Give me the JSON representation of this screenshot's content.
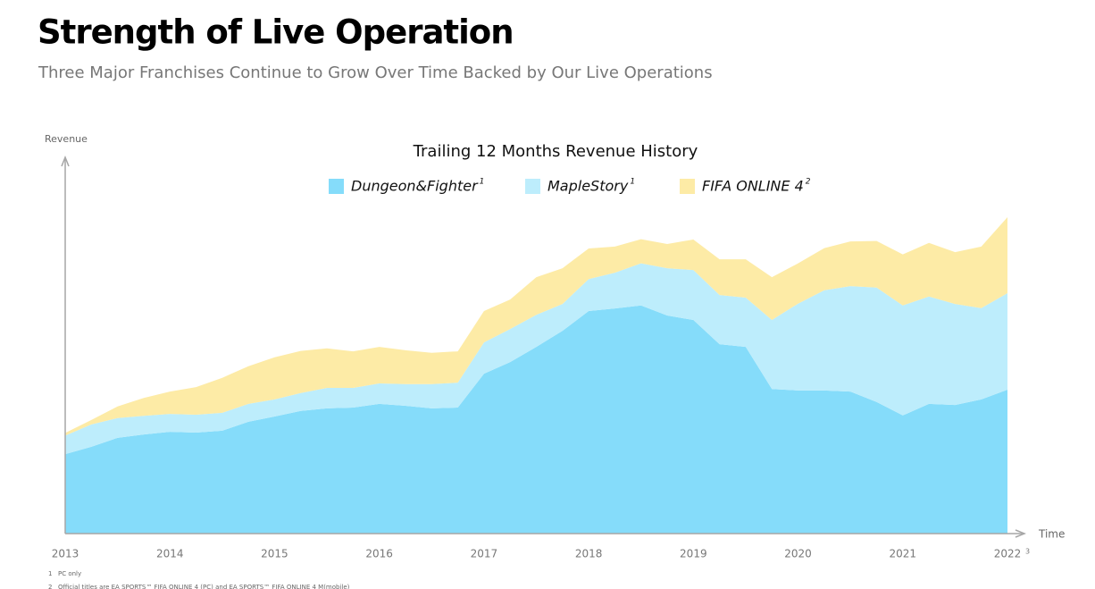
{
  "chart_data": {
    "type": "stacked_area",
    "title": "Strength of Live Operation",
    "subtitle": "Three Major Franchises Continue to Grow Over Time Backed by Our Live Operations",
    "chart_title": "Trailing 12 Months Revenue History",
    "y_label": "Revenue",
    "x_label": "Time",
    "x": [
      2013,
      2013.25,
      2013.5,
      2013.75,
      2014,
      2014.25,
      2014.5,
      2014.75,
      2015,
      2015.25,
      2015.5,
      2015.75,
      2016,
      2016.25,
      2016.5,
      2016.75,
      2017,
      2017.25,
      2017.5,
      2017.75,
      2018,
      2018.25,
      2018.5,
      2018.75,
      2019,
      2019.25,
      2019.5,
      2019.75,
      2020,
      2020.25,
      2020.5,
      2020.75,
      2021,
      2021.25,
      2021.5,
      2021.75,
      2022
    ],
    "series": [
      {
        "name": "Dungeon&Fighter",
        "name_note": "1",
        "color": "#85dcfa",
        "values": [
          21.3,
          23.3,
          25.7,
          26.6,
          27.3,
          27.1,
          27.6,
          30.0,
          31.4,
          32.9,
          33.6,
          33.8,
          34.8,
          34.3,
          33.6,
          33.8,
          42.9,
          46.0,
          50.1,
          54.4,
          59.7,
          60.4,
          61.2,
          58.5,
          57.3,
          50.8,
          50.1,
          38.8,
          38.4,
          38.4,
          38.1,
          35.3,
          31.7,
          34.8,
          34.5,
          36.0,
          38.6
        ]
      },
      {
        "name": "MapleStory",
        "name_note": "1",
        "color": "#bdedfc",
        "values": [
          5.0,
          6.0,
          5.3,
          5.0,
          4.8,
          4.8,
          4.8,
          4.8,
          4.6,
          4.8,
          5.5,
          5.3,
          5.5,
          5.8,
          6.5,
          6.7,
          8.4,
          8.9,
          8.6,
          7.2,
          8.6,
          9.6,
          11.3,
          12.7,
          13.4,
          13.2,
          13.2,
          18.5,
          23.3,
          26.9,
          28.3,
          30.7,
          29.5,
          28.8,
          27.1,
          24.5,
          25.9
        ]
      },
      {
        "name": "FIFA ONLINE 4",
        "name_note": "2",
        "color": "#fdeba6",
        "values": [
          0.7,
          1.2,
          3.1,
          4.8,
          6.0,
          7.4,
          9.4,
          10.1,
          11.3,
          11.3,
          10.6,
          9.8,
          9.8,
          9.1,
          8.4,
          8.4,
          8.4,
          7.9,
          10.1,
          9.6,
          8.2,
          7.0,
          6.5,
          6.5,
          8.2,
          9.6,
          10.3,
          11.5,
          10.8,
          11.3,
          12.0,
          12.5,
          13.7,
          14.4,
          13.9,
          16.5,
          20.4
        ]
      }
    ],
    "xlim": [
      2013,
      2022
    ],
    "xticks": [
      2013,
      2014,
      2015,
      2016,
      2017,
      2018,
      2019,
      2020,
      2021,
      2022
    ],
    "xtick_last_note": "3",
    "ylim": [
      0,
      100
    ],
    "axis_color": "#a6a6a6",
    "footnotes": [
      {
        "mark": "1",
        "text": "PC only"
      },
      {
        "mark": "2",
        "text": "Official titles are EA SPORTS™ FIFA ONLINE 4 (PC) and EA SPORTS™ FIFA ONLINE 4 M(mobile)"
      }
    ]
  }
}
